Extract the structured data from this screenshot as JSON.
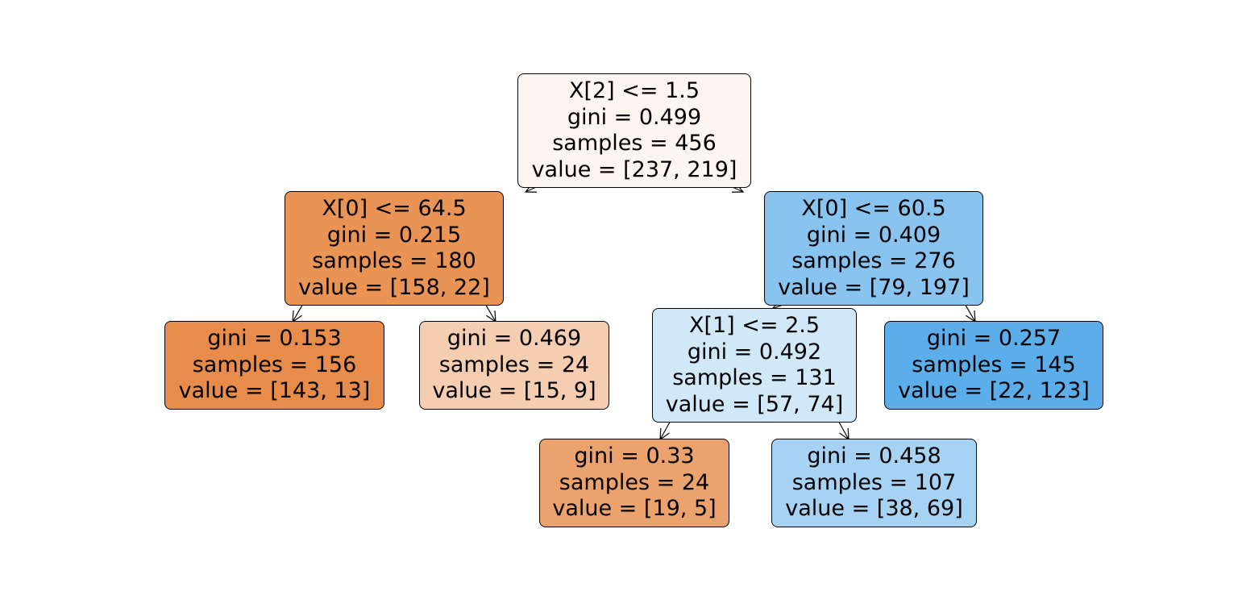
{
  "tree": {
    "nodes": [
      {
        "id": "n0",
        "split": "X[2] <= 1.5",
        "gini": "gini = 0.499",
        "samples": "samples = 456",
        "value": "value = [237, 219]",
        "color": "#fcf5f0"
      },
      {
        "id": "n1",
        "split": "X[0] <= 64.5",
        "gini": "gini = 0.215",
        "samples": "samples = 180",
        "value": "value = [158, 22]",
        "color": "#e99355"
      },
      {
        "id": "n2",
        "split": "",
        "gini": "gini = 0.153",
        "samples": "samples = 156",
        "value": "value = [143, 13]",
        "color": "#e78c4b"
      },
      {
        "id": "n3",
        "split": "",
        "gini": "gini = 0.469",
        "samples": "samples = 24",
        "value": "value = [15, 9]",
        "color": "#f5cdb0"
      },
      {
        "id": "n4",
        "split": "X[0] <= 60.5",
        "gini": "gini = 0.409",
        "samples": "samples = 276",
        "value": "value = [79, 197]",
        "color": "#88c4ef"
      },
      {
        "id": "n5",
        "split": "X[1] <= 2.5",
        "gini": "gini = 0.492",
        "samples": "samples = 131",
        "value": "value = [57, 74]",
        "color": "#d1e8f9"
      },
      {
        "id": "n6",
        "split": "",
        "gini": "gini = 0.33",
        "samples": "samples = 24",
        "value": "value = [19, 5]",
        "color": "#eca26d"
      },
      {
        "id": "n7",
        "split": "",
        "gini": "gini = 0.458",
        "samples": "samples = 107",
        "value": "value = [38, 69]",
        "color": "#a6d3f3"
      },
      {
        "id": "n8",
        "split": "",
        "gini": "gini = 0.257",
        "samples": "samples = 145",
        "value": "value = [22, 123]",
        "color": "#5caeea"
      }
    ],
    "edges": [
      {
        "from": "n0",
        "to": "n1"
      },
      {
        "from": "n0",
        "to": "n4"
      },
      {
        "from": "n1",
        "to": "n2"
      },
      {
        "from": "n1",
        "to": "n3"
      },
      {
        "from": "n4",
        "to": "n5"
      },
      {
        "from": "n4",
        "to": "n8"
      },
      {
        "from": "n5",
        "to": "n6"
      },
      {
        "from": "n5",
        "to": "n7"
      }
    ]
  }
}
